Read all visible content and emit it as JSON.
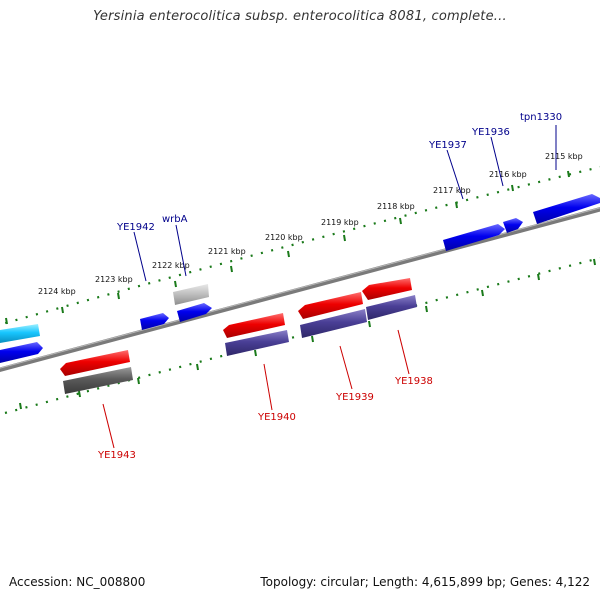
{
  "title": "Yersinia enterocolitica subsp. enterocolitica 8081, complete...",
  "footer": {
    "accession": "Accession: NC_008800",
    "topology": "Topology: circular; Length: 4,615,899 bp; Genes: 4,122"
  },
  "colors": {
    "backbone": "#7a7a7a",
    "tick": "#1a7a1a",
    "gene_label_blue": "#00008b",
    "gene_label_red": "#cc0000"
  },
  "kbp_labels": [
    "2115 kbp",
    "2116 kbp",
    "2117 kbp",
    "2118 kbp",
    "2119 kbp",
    "2120 kbp",
    "2121 kbp",
    "2122 kbp",
    "2123 kbp",
    "2124 kbp"
  ],
  "genes": {
    "ye1942": "YE1942",
    "wrbA": "wrbA",
    "ye1937": "YE1937",
    "ye1936": "YE1936",
    "tpn1330": "tpn1330",
    "ye1943": "YE1943",
    "ye1940": "YE1940",
    "ye1939": "YE1939",
    "ye1938": "YE1938"
  }
}
